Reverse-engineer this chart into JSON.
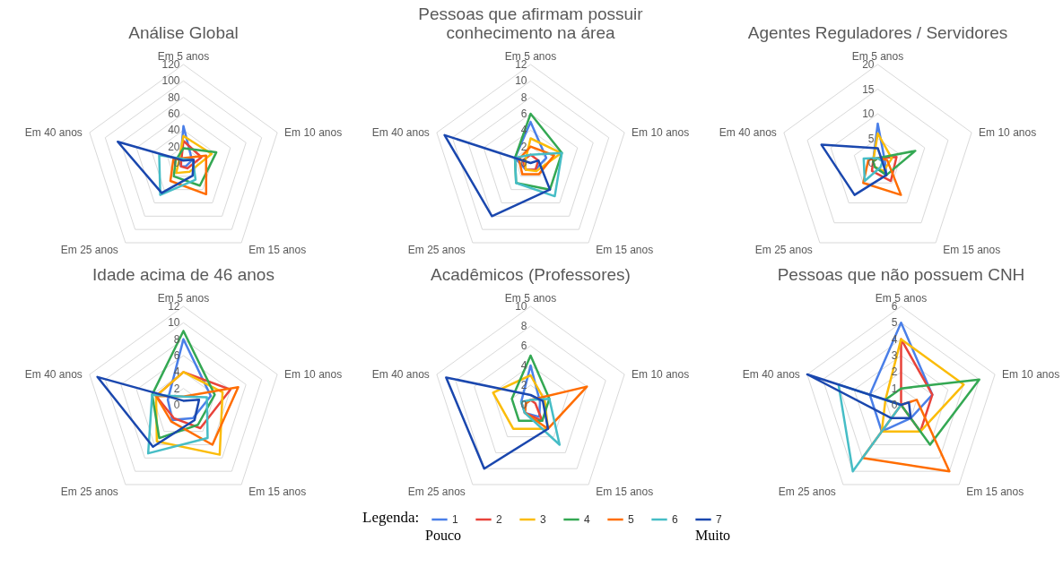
{
  "chart_data": [
    {
      "type": "radar",
      "title": "Análise Global",
      "categories": [
        "Em 5 anos",
        "Em 10 anos",
        "Em 15 anos",
        "Em 25 anos",
        "Em 40 anos"
      ],
      "ylim": [
        0,
        120
      ],
      "yticks": [
        0,
        20,
        40,
        60,
        80,
        100,
        120
      ],
      "grid": true,
      "series": [
        {
          "color": "#4a7fe8",
          "values": [
            45,
            11,
            5,
            5,
            4
          ]
        },
        {
          "color": "#e8433a",
          "values": [
            27,
            23,
            8,
            5,
            3
          ]
        },
        {
          "color": "#fbbc09",
          "values": [
            33,
            36,
            13,
            15,
            6
          ]
        },
        {
          "color": "#34a853",
          "values": [
            18,
            42,
            34,
            20,
            10
          ]
        },
        {
          "color": "#ff6d01",
          "values": [
            6,
            29,
            47,
            27,
            13
          ]
        },
        {
          "color": "#46bdc6",
          "values": [
            5,
            12,
            25,
            48,
            31
          ]
        },
        {
          "color": "#1a47ae",
          "values": [
            3,
            13,
            19,
            45,
            84
          ]
        }
      ]
    },
    {
      "type": "radar",
      "title": "Pessoas que afirmam possuir conhecimento na área",
      "categories": [
        "Em 5 anos",
        "Em 10 anos",
        "Em 15 anos",
        "Em 25 anos",
        "Em 40 anos"
      ],
      "ylim": [
        0,
        12
      ],
      "yticks": [
        0,
        2,
        4,
        6,
        8,
        10,
        12
      ],
      "grid": true,
      "series": [
        {
          "color": "#4a7fe8",
          "values": [
            5,
            2,
            1,
            1,
            2
          ]
        },
        {
          "color": "#e8433a",
          "values": [
            1,
            1,
            1,
            1,
            1
          ]
        },
        {
          "color": "#fbbc09",
          "values": [
            3,
            3.9,
            1.2,
            1,
            0.7
          ]
        },
        {
          "color": "#34a853",
          "values": [
            6,
            4,
            4,
            3,
            2
          ]
        },
        {
          "color": "#ff6d01",
          "values": [
            2,
            3,
            1.7,
            1.7,
            1.5
          ]
        },
        {
          "color": "#46bdc6",
          "values": [
            1,
            4,
            5,
            3,
            2
          ]
        },
        {
          "color": "#1a47ae",
          "values": [
            0,
            1,
            4,
            8,
            11
          ]
        }
      ]
    },
    {
      "type": "radar",
      "title": "Agentes Reguladores / Servidores",
      "categories": [
        "Em 5 anos",
        "Em 10 anos",
        "Em 15 anos",
        "Em 25 anos",
        "Em 40 anos"
      ],
      "ylim": [
        0,
        20
      ],
      "yticks": [
        0,
        5,
        10,
        15,
        20
      ],
      "grid": true,
      "series": [
        {
          "color": "#4a7fe8",
          "values": [
            8,
            1.5,
            3,
            1,
            1
          ]
        },
        {
          "color": "#e8433a",
          "values": [
            1,
            4,
            4.5,
            2,
            1
          ]
        },
        {
          "color": "#fbbc09",
          "values": [
            6,
            3,
            2,
            1,
            1
          ]
        },
        {
          "color": "#34a853",
          "values": [
            1,
            8,
            3,
            1,
            1
          ]
        },
        {
          "color": "#ff6d01",
          "values": [
            1,
            2,
            8,
            5,
            2
          ]
        },
        {
          "color": "#46bdc6",
          "values": [
            1,
            1,
            1,
            4.5,
            3
          ]
        },
        {
          "color": "#1a47ae",
          "values": [
            3,
            1,
            3,
            8,
            12
          ]
        }
      ]
    },
    {
      "type": "radar",
      "title": "Idade acima de 46 anos",
      "categories": [
        "Em 5 anos",
        "Em 10 anos",
        "Em 15 anos",
        "Em 25 anos",
        "Em 40 anos"
      ],
      "ylim": [
        0,
        12
      ],
      "yticks": [
        0,
        2,
        4,
        6,
        8,
        10,
        12
      ],
      "grid": true,
      "series": [
        {
          "color": "#4a7fe8",
          "values": [
            8,
            3.5,
            2,
            2.3,
            2
          ]
        },
        {
          "color": "#e8433a",
          "values": [
            4,
            6,
            3.5,
            2,
            3.5
          ]
        },
        {
          "color": "#fbbc09",
          "values": [
            4,
            5,
            7.5,
            5.5,
            3.5
          ]
        },
        {
          "color": "#34a853",
          "values": [
            9,
            4,
            3,
            5,
            4
          ]
        },
        {
          "color": "#ff6d01",
          "values": [
            1,
            7,
            6,
            2.5,
            3.5
          ]
        },
        {
          "color": "#46bdc6",
          "values": [
            1,
            3,
            5,
            7.3,
            4
          ]
        },
        {
          "color": "#1a47ae",
          "values": [
            0.5,
            2,
            2.3,
            6.3,
            11
          ]
        }
      ]
    },
    {
      "type": "radar",
      "title": "Acadêmicos (Professores)",
      "categories": [
        "Em 5 anos",
        "Em 10 anos",
        "Em 15 anos",
        "Em 25 anos",
        "Em 40 anos"
      ],
      "ylim": [
        0,
        10
      ],
      "yticks": [
        0,
        2,
        4,
        6,
        8,
        10
      ],
      "grid": true,
      "legend": "bottom",
      "legend_title": "Legenda:",
      "annotations": [
        "Pouco",
        "Muito"
      ],
      "series": [
        {
          "name": "1",
          "color": "#4a7fe8",
          "values": [
            4,
            1,
            1.5,
            1,
            1
          ]
        },
        {
          "name": "2",
          "color": "#e8433a",
          "values": [
            0.5,
            0.5,
            2,
            1,
            0.5
          ]
        },
        {
          "name": "3",
          "color": "#fbbc09",
          "values": [
            3,
            1.5,
            3,
            3,
            4
          ]
        },
        {
          "name": "4",
          "color": "#34a853",
          "values": [
            5,
            2,
            2,
            2,
            2
          ]
        },
        {
          "name": "5",
          "color": "#ff6d01",
          "values": [
            0.5,
            6,
            3,
            1,
            0.5
          ]
        },
        {
          "name": "6",
          "color": "#46bdc6",
          "values": [
            0.5,
            2,
            5,
            1,
            1
          ]
        },
        {
          "name": "7",
          "color": "#1a47ae",
          "values": [
            1,
            1.3,
            3,
            8,
            9
          ]
        }
      ]
    },
    {
      "type": "radar",
      "title": "Pessoas que não possuem CNH",
      "categories": [
        "Em 5 anos",
        "Em 10 anos",
        "Em 15 anos",
        "Em 25 anos",
        "Em 40 anos"
      ],
      "ylim": [
        0,
        6
      ],
      "yticks": [
        0,
        1,
        2,
        3,
        4,
        5,
        6
      ],
      "grid": true,
      "series": [
        {
          "color": "#4a7fe8",
          "values": [
            5,
            2,
            1,
            2,
            2
          ]
        },
        {
          "color": "#e8433a",
          "values": [
            4,
            2,
            2,
            0,
            0
          ]
        },
        {
          "color": "#fbbc09",
          "values": [
            4,
            4,
            2,
            2,
            1
          ]
        },
        {
          "color": "#34a853",
          "values": [
            1,
            5,
            3,
            0,
            1
          ]
        },
        {
          "color": "#ff6d01",
          "values": [
            0,
            1,
            5,
            4,
            0
          ]
        },
        {
          "color": "#46bdc6",
          "values": [
            0,
            0,
            0,
            5,
            4
          ]
        },
        {
          "color": "#1a47ae",
          "values": [
            0,
            0.5,
            1,
            1,
            6
          ]
        }
      ]
    }
  ]
}
